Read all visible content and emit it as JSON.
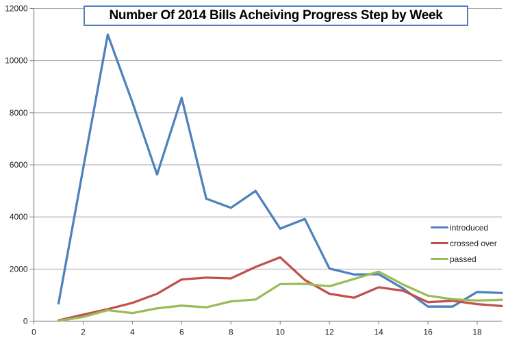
{
  "chart_data": {
    "type": "line",
    "title": "Number Of 2014 Bills Acheiving Progress Step by Week",
    "xlabel": "",
    "ylabel": "",
    "x": [
      1,
      2,
      3,
      4,
      5,
      6,
      7,
      8,
      9,
      10,
      11,
      12,
      13,
      14,
      15,
      16,
      17,
      18,
      19
    ],
    "series": [
      {
        "name": "introduced",
        "color": "#4F81BD",
        "values": [
          680,
          5850,
          11000,
          8400,
          5630,
          8570,
          4700,
          4350,
          5000,
          3550,
          3920,
          2020,
          1790,
          1800,
          1250,
          560,
          560,
          1120,
          1080
        ]
      },
      {
        "name": "crossed over",
        "color": "#C0504D",
        "values": [
          30,
          250,
          460,
          700,
          1050,
          1600,
          1670,
          1640,
          2080,
          2450,
          1580,
          1050,
          900,
          1300,
          1165,
          730,
          780,
          655,
          580
        ]
      },
      {
        "name": "passed",
        "color": "#9BBB59",
        "values": [
          10,
          160,
          420,
          310,
          490,
          595,
          530,
          760,
          830,
          1420,
          1430,
          1340,
          1620,
          1900,
          1400,
          980,
          840,
          790,
          820
        ]
      }
    ],
    "xlim": [
      0,
      19
    ],
    "ylim": [
      0,
      12000
    ],
    "x_ticks": [
      0,
      2,
      4,
      6,
      8,
      10,
      12,
      14,
      16,
      18
    ],
    "y_ticks": [
      0,
      2000,
      4000,
      6000,
      8000,
      10000,
      12000
    ],
    "grid": true,
    "legend_position": "middle-right",
    "legend": [
      "introduced",
      "crossed over",
      "passed"
    ]
  },
  "colors": {
    "introduced": "#4F81BD",
    "crossed_over": "#C0504D",
    "passed": "#9BBB59",
    "gridline": "#A6A6A6",
    "axis": "#808080",
    "title_border": "#4F81BD",
    "title_text": "#000000",
    "tick_text": "#1F1F1F",
    "background": "#FFFFFF"
  }
}
